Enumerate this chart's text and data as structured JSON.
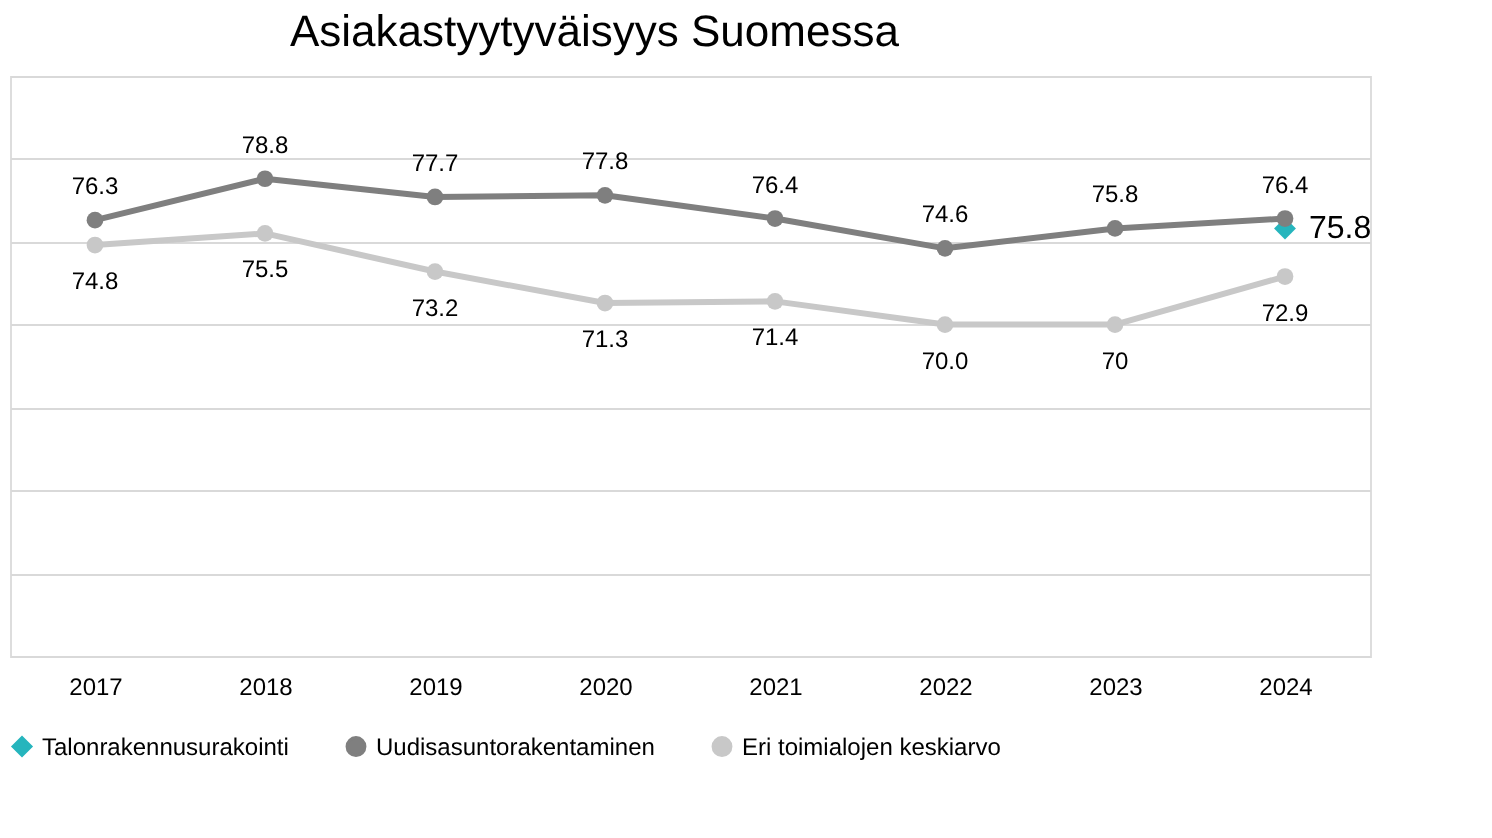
{
  "chart_data": {
    "type": "line",
    "title": "Asiakastyytyväisyys Suomessa",
    "categories": [
      "2017",
      "2018",
      "2019",
      "2020",
      "2021",
      "2022",
      "2023",
      "2024"
    ],
    "series": [
      {
        "name": "Talonrakennusurakointi",
        "type": "scatter",
        "marker": "diamond",
        "color": "#26b5bd",
        "values": [
          null,
          null,
          null,
          null,
          null,
          null,
          null,
          75.8
        ],
        "value_labels": [
          null,
          null,
          null,
          null,
          null,
          null,
          null,
          "75.8"
        ]
      },
      {
        "name": "Uudisasuntorakentaminen",
        "marker": "circle",
        "color": "#7f7f7f",
        "values": [
          76.3,
          78.8,
          77.7,
          77.8,
          76.4,
          74.6,
          75.8,
          76.4
        ],
        "value_labels": [
          "76.3",
          "78.8",
          "77.7",
          "77.8",
          "76.4",
          "74.6",
          "75.8",
          "76.4"
        ]
      },
      {
        "name": "Eri toimialojen keskiarvo",
        "marker": "circle",
        "color": "#c8c8c8",
        "values": [
          74.8,
          75.5,
          73.2,
          71.3,
          71.4,
          70.0,
          70,
          72.9
        ],
        "value_labels": [
          "74.8",
          "75.5",
          "73.2",
          "71.3",
          "71.4",
          "70.0",
          "70",
          "72.9"
        ]
      }
    ],
    "ylim": [
      50,
      85
    ],
    "yticks": [
      50,
      55,
      60,
      65,
      70,
      75,
      80,
      85
    ],
    "tick_labels": "x",
    "grid": "y",
    "legend": "bottom",
    "line_style": "solid"
  }
}
